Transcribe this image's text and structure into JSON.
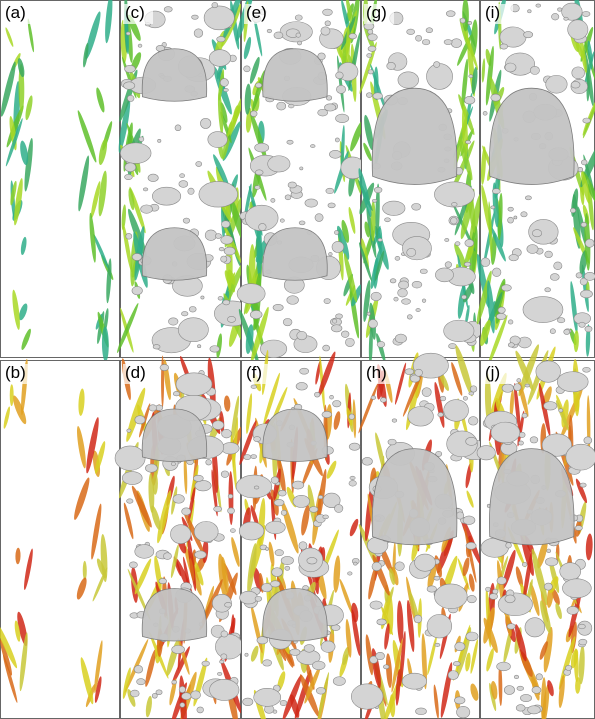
{
  "panels": [
    "(a)",
    "(c)",
    "(e)",
    "(g)",
    "(i)",
    "(b)",
    "(d)",
    "(f)",
    "(h)",
    "(j)"
  ]
}
